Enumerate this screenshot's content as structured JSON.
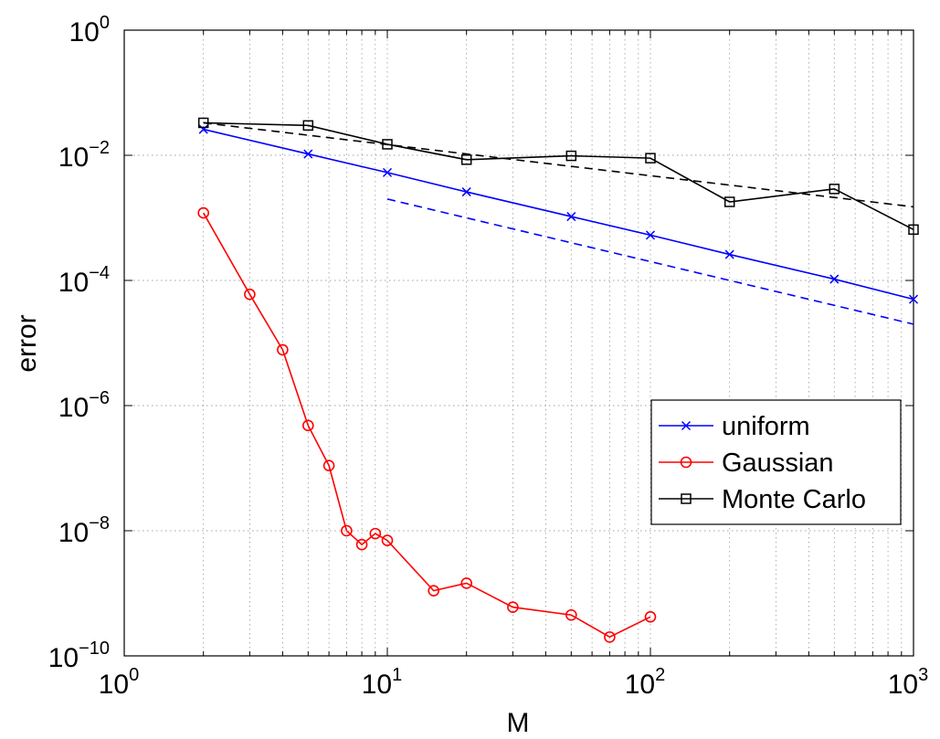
{
  "chart_data": {
    "type": "line",
    "title": "",
    "xlabel": "M",
    "ylabel": "error",
    "xscale": "log",
    "yscale": "log",
    "xlim": [
      1,
      1000
    ],
    "ylim": [
      1e-10,
      1
    ],
    "grid": true,
    "legend_position": "lower-right",
    "x_ticks": [
      {
        "value": 1,
        "base": "10",
        "exp": "0"
      },
      {
        "value": 10,
        "base": "10",
        "exp": "1"
      },
      {
        "value": 100,
        "base": "10",
        "exp": "2"
      },
      {
        "value": 1000,
        "base": "10",
        "exp": "3"
      }
    ],
    "y_ticks": [
      {
        "value": 1e-10,
        "base": "10",
        "exp": "−10"
      },
      {
        "value": 1e-08,
        "base": "10",
        "exp": "−8"
      },
      {
        "value": 1e-06,
        "base": "10",
        "exp": "−6"
      },
      {
        "value": 0.0001,
        "base": "10",
        "exp": "−4"
      },
      {
        "value": 0.01,
        "base": "10",
        "exp": "−2"
      },
      {
        "value": 1,
        "base": "10",
        "exp": "0"
      }
    ],
    "series": [
      {
        "name": "uniform",
        "color": "#0000ff",
        "marker": "x",
        "line": "solid",
        "x": [
          2,
          5,
          10,
          20,
          50,
          100,
          200,
          500,
          1000
        ],
        "y": [
          0.026,
          0.0105,
          0.0053,
          0.0026,
          0.00105,
          0.00053,
          0.00026,
          0.000105,
          5e-05
        ]
      },
      {
        "name": "Gaussian",
        "color": "#ff0000",
        "marker": "o",
        "line": "solid",
        "x": [
          2,
          3,
          4,
          5,
          6,
          7,
          8,
          9,
          10,
          15,
          20,
          30,
          50,
          70,
          100
        ],
        "y": [
          0.0012,
          6e-05,
          7.8e-06,
          4.8e-07,
          1.1e-07,
          1e-08,
          6e-09,
          9e-09,
          7e-09,
          1.1e-09,
          1.45e-09,
          6e-10,
          4.5e-10,
          2e-10,
          4.2e-10
        ]
      },
      {
        "name": "Monte Carlo",
        "color": "#000000",
        "marker": "square",
        "line": "solid",
        "x": [
          2,
          5,
          10,
          20,
          50,
          100,
          200,
          500,
          1000
        ],
        "y": [
          0.033,
          0.03,
          0.015,
          0.0085,
          0.0098,
          0.009,
          0.0018,
          0.0029,
          0.00065
        ]
      }
    ],
    "reference_lines": [
      {
        "color": "#000000",
        "line": "dashed",
        "x": [
          2,
          1000
        ],
        "y": [
          0.033,
          0.0015
        ]
      },
      {
        "color": "#0000ff",
        "line": "dashed",
        "x": [
          10,
          1000
        ],
        "y": [
          0.002,
          2e-05
        ]
      }
    ]
  }
}
